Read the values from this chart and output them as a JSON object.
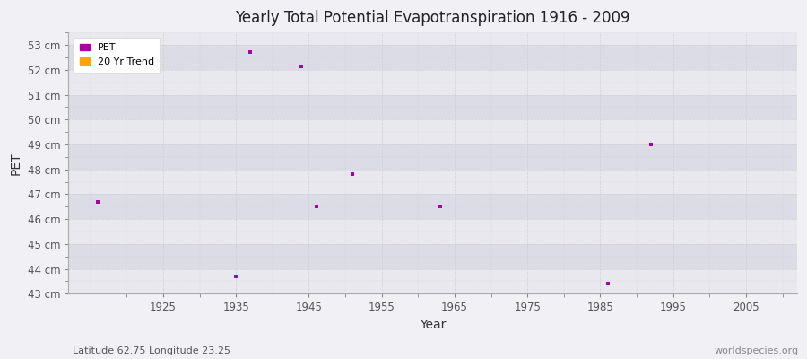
{
  "title": "Yearly Total Potential Evapotranspiration 1916 - 2009",
  "xlabel": "Year",
  "ylabel": "PET",
  "subtitle_left": "Latitude 62.75 Longitude 23.25",
  "subtitle_right": "worldspecies.org",
  "xlim": [
    1912,
    2012
  ],
  "ylim": [
    43,
    53.5
  ],
  "yticks": [
    43,
    44,
    45,
    46,
    47,
    48,
    49,
    50,
    51,
    52,
    53
  ],
  "ytick_labels": [
    "43 cm",
    "44 cm",
    "45 cm",
    "46 cm",
    "47 cm",
    "48 cm",
    "49 cm",
    "50 cm",
    "51 cm",
    "52 cm",
    "53 cm"
  ],
  "xticks": [
    1925,
    1935,
    1945,
    1955,
    1965,
    1975,
    1985,
    1995,
    2005
  ],
  "pet_color": "#aa00aa",
  "trend_color": "#FFA500",
  "bg_color": "#f0f0f5",
  "plot_bg_color": "#e8e8ee",
  "stripe_color_light": "#e8e8ee",
  "stripe_color_dark": "#dcdce6",
  "pet_data": [
    [
      1916,
      46.7
    ],
    [
      1935,
      43.7
    ],
    [
      1937,
      52.7
    ],
    [
      1944,
      52.15
    ],
    [
      1946,
      46.5
    ],
    [
      1951,
      47.8
    ],
    [
      1963,
      46.5
    ],
    [
      1986,
      43.4
    ],
    [
      1992,
      49.0
    ]
  ],
  "marker_size": 3,
  "legend_loc": "upper left",
  "grid_color": "#cccccc",
  "tick_color": "#888888",
  "spine_color": "#aaaaaa"
}
